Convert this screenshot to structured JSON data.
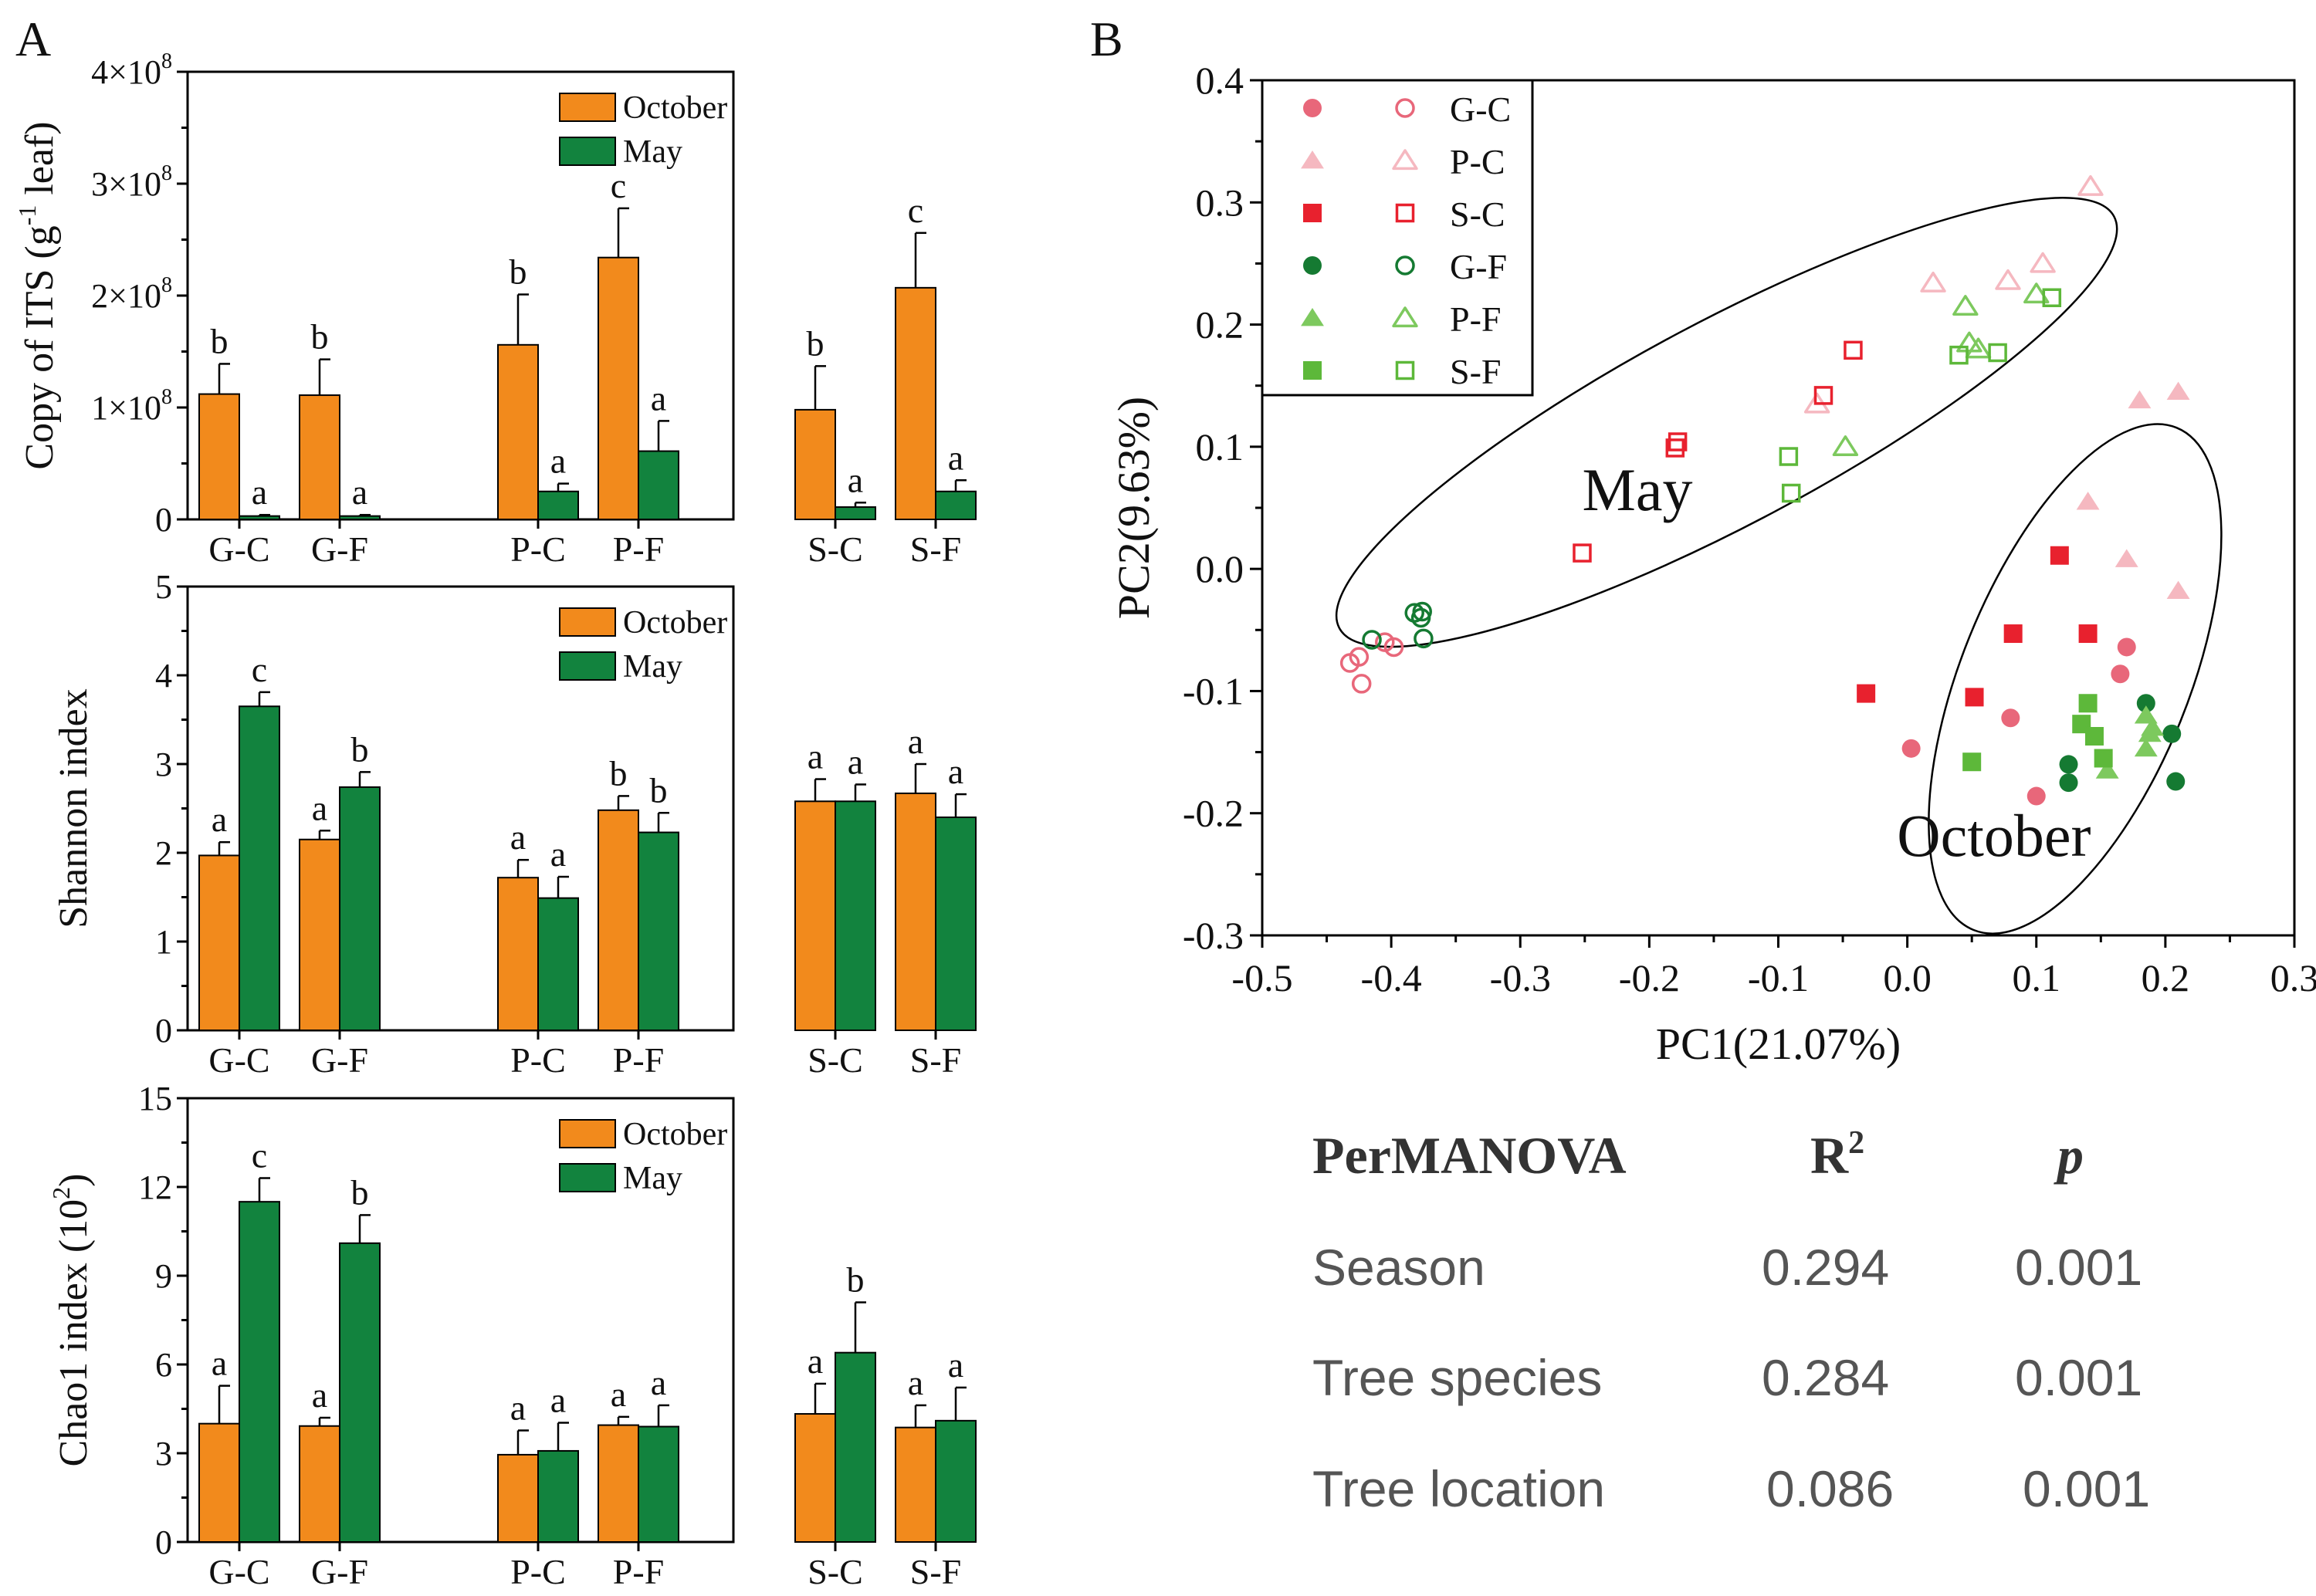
{
  "colors": {
    "october": "#F28A1C",
    "may": "#12833E",
    "axis": "#000000"
  },
  "chart_data": [
    {
      "id": "its",
      "type": "bar",
      "ylabel_main": "Copy of ITS (g",
      "ylabel_sup": "-1",
      "ylabel_tail": " leaf)",
      "ylim": [
        0,
        4
      ],
      "yticks": [
        0,
        1,
        2,
        3,
        4
      ],
      "ytick_labels": [
        "0",
        "1×10",
        "2×10",
        "3×10",
        "4×10"
      ],
      "ytick_sup": "8",
      "categories": [
        "G-C",
        "G-F",
        "P-C",
        "P-F",
        "S-C",
        "S-F"
      ],
      "legend": [
        "October",
        "May"
      ],
      "series": [
        {
          "name": "October",
          "values": [
            1.12,
            1.11,
            1.56,
            2.34,
            0.98,
            2.07
          ],
          "errors": [
            0.27,
            0.32,
            0.45,
            0.44,
            0.39,
            0.49
          ],
          "letters": [
            "b",
            "b",
            "b",
            "c",
            "b",
            "c"
          ]
        },
        {
          "name": "May",
          "values": [
            0.03,
            0.03,
            0.25,
            0.61,
            0.11,
            0.25
          ],
          "errors": [
            0.01,
            0.01,
            0.07,
            0.27,
            0.04,
            0.1
          ],
          "letters": [
            "a",
            "a",
            "a",
            "a",
            "a",
            "a"
          ]
        }
      ]
    },
    {
      "id": "shannon",
      "type": "bar",
      "ylabel_main": "Shannon index",
      "ylim": [
        0,
        5
      ],
      "yticks": [
        0,
        1,
        2,
        3,
        4,
        5
      ],
      "ytick_labels": [
        "0",
        "1",
        "2",
        "3",
        "4",
        "5"
      ],
      "categories": [
        "G-C",
        "G-F",
        "P-C",
        "P-F",
        "S-C",
        "S-F"
      ],
      "legend": [
        "October",
        "May"
      ],
      "series": [
        {
          "name": "October",
          "values": [
            1.97,
            2.15,
            1.72,
            2.48,
            2.58,
            2.67
          ],
          "errors": [
            0.15,
            0.1,
            0.2,
            0.16,
            0.25,
            0.33
          ],
          "letters": [
            "a",
            "a",
            "a",
            "b",
            "a",
            "a"
          ]
        },
        {
          "name": "May",
          "values": [
            3.65,
            2.74,
            1.49,
            2.23,
            2.58,
            2.4
          ],
          "errors": [
            0.16,
            0.17,
            0.24,
            0.22,
            0.19,
            0.26
          ],
          "letters": [
            "c",
            "b",
            "a",
            "b",
            "a",
            "a"
          ]
        }
      ]
    },
    {
      "id": "chao1",
      "type": "bar",
      "ylabel_main": "Chao1 index (10",
      "ylabel_sup": "2",
      "ylabel_tail": ")",
      "ylim": [
        0,
        15
      ],
      "yticks": [
        0,
        3,
        6,
        9,
        12,
        15
      ],
      "ytick_labels": [
        "0",
        "3",
        "6",
        "9",
        "12",
        "15"
      ],
      "categories": [
        "G-C",
        "G-F",
        "P-C",
        "P-F",
        "S-C",
        "S-F"
      ],
      "legend": [
        "October",
        "May"
      ],
      "series": [
        {
          "name": "October",
          "values": [
            4.0,
            3.92,
            2.95,
            3.95,
            4.33,
            3.87
          ],
          "errors": [
            1.28,
            0.28,
            0.82,
            0.28,
            1.02,
            0.75
          ],
          "letters": [
            "a",
            "a",
            "a",
            "a",
            "a",
            "a"
          ]
        },
        {
          "name": "May",
          "values": [
            11.5,
            10.1,
            3.08,
            3.9,
            6.4,
            4.1
          ],
          "errors": [
            0.8,
            0.95,
            0.95,
            0.72,
            1.7,
            1.12
          ],
          "letters": [
            "c",
            "b",
            "a",
            "a",
            "b",
            "a"
          ]
        }
      ]
    },
    {
      "id": "pca",
      "type": "scatter",
      "xlabel": "PC1(21.07%)",
      "ylabel": "PC2(9.63%)",
      "xlim": [
        -0.5,
        0.3
      ],
      "ylim": [
        -0.3,
        0.4
      ],
      "xticks": [
        -0.5,
        -0.4,
        -0.3,
        -0.2,
        -0.1,
        0.0,
        0.1,
        0.2,
        0.3
      ],
      "xtick_labels": [
        "-0.5",
        "-0.4",
        "-0.3",
        "-0.2",
        "-0.1",
        "0.0",
        "0.1",
        "0.2",
        "0.3"
      ],
      "yticks": [
        -0.3,
        -0.2,
        -0.1,
        0.0,
        0.1,
        0.2,
        0.3,
        0.4
      ],
      "ytick_labels": [
        "-0.3",
        "-0.2",
        "-0.1",
        "0.0",
        "0.1",
        "0.2",
        "0.3",
        "0.4"
      ],
      "annotations": [
        "May",
        "October"
      ],
      "ellipses": [
        {
          "name": "May",
          "center": [
            -0.14,
            0.12
          ],
          "rx": 0.34,
          "ry": 0.083,
          "angle_deg": -28
        },
        {
          "name": "October",
          "center": [
            0.13,
            -0.09
          ],
          "rx": 0.21,
          "ry": 0.093,
          "angle_deg": -68
        }
      ],
      "groups": [
        {
          "name": "G-C",
          "marker": "circle",
          "color": "#E8677A",
          "filled": [
            [
              0.003,
              -0.147
            ],
            [
              0.08,
              -0.122
            ],
            [
              0.165,
              -0.086
            ],
            [
              0.17,
              -0.064
            ],
            [
              0.1,
              -0.186
            ]
          ],
          "open": [
            [
              -0.432,
              -0.077
            ],
            [
              -0.425,
              -0.072
            ],
            [
              -0.423,
              -0.094
            ],
            [
              -0.405,
              -0.06
            ],
            [
              -0.398,
              -0.064
            ]
          ]
        },
        {
          "name": "P-C",
          "marker": "triangle",
          "color": "#F5B8C0",
          "filled": [
            [
              0.18,
              0.138
            ],
            [
              0.21,
              0.145
            ],
            [
              0.14,
              0.055
            ],
            [
              0.17,
              0.008
            ],
            [
              0.21,
              -0.018
            ]
          ],
          "open": [
            [
              0.142,
              0.313
            ],
            [
              0.02,
              0.234
            ],
            [
              0.105,
              0.25
            ],
            [
              0.078,
              0.236
            ],
            [
              -0.07,
              0.135
            ]
          ]
        },
        {
          "name": "S-C",
          "marker": "square",
          "color": "#E8212E",
          "filled": [
            [
              -0.032,
              -0.102
            ],
            [
              0.052,
              -0.105
            ],
            [
              0.082,
              -0.053
            ],
            [
              0.14,
              -0.053
            ],
            [
              0.118,
              0.011
            ]
          ],
          "open": [
            [
              -0.042,
              0.179
            ],
            [
              -0.065,
              0.142
            ],
            [
              -0.178,
              0.104
            ],
            [
              -0.18,
              0.099
            ],
            [
              -0.252,
              0.013
            ]
          ]
        },
        {
          "name": "G-F",
          "marker": "circle",
          "color": "#157A32",
          "filled": [
            [
              0.185,
              -0.11
            ],
            [
              0.205,
              -0.135
            ],
            [
              0.208,
              -0.174
            ],
            [
              0.125,
              -0.16
            ],
            [
              0.125,
              -0.175
            ]
          ],
          "open": [
            [
              -0.415,
              -0.058
            ],
            [
              -0.382,
              -0.036
            ],
            [
              -0.376,
              -0.035
            ],
            [
              -0.377,
              -0.04
            ],
            [
              -0.375,
              -0.057
            ]
          ]
        },
        {
          "name": "P-F",
          "marker": "triangle",
          "color": "#7DC95E",
          "filled": [
            [
              0.185,
              -0.12
            ],
            [
              0.19,
              -0.13
            ],
            [
              0.185,
              -0.147
            ],
            [
              0.155,
              -0.165
            ],
            [
              0.188,
              -0.135
            ]
          ],
          "open": [
            [
              -0.048,
              0.1
            ],
            [
              0.045,
              0.215
            ],
            [
              0.048,
              0.185
            ],
            [
              0.055,
              0.18
            ],
            [
              0.1,
              0.225
            ]
          ]
        },
        {
          "name": "S-F",
          "marker": "square",
          "color": "#5DB83A",
          "filled": [
            [
              0.14,
              -0.11
            ],
            [
              0.135,
              -0.127
            ],
            [
              0.145,
              -0.137
            ],
            [
              0.152,
              -0.155
            ],
            [
              0.05,
              -0.158
            ]
          ],
          "open": [
            [
              -0.092,
              0.092
            ],
            [
              -0.09,
              0.062
            ],
            [
              0.04,
              0.175
            ],
            [
              0.07,
              0.177
            ],
            [
              0.112,
              0.222
            ]
          ]
        }
      ]
    }
  ],
  "panels": {
    "a_label": "A",
    "b_label": "B"
  },
  "stats_table": {
    "header": [
      "PerMANOVA",
      "R",
      "p"
    ],
    "header_sup": "2",
    "rows": [
      {
        "factor": "Season",
        "r2": "0.294",
        "p": "0.001"
      },
      {
        "factor": "Tree species",
        "r2": "0.284",
        "p": "0.001"
      },
      {
        "factor": "Tree location",
        "r2": "0.086",
        "p": "0.001"
      }
    ]
  }
}
